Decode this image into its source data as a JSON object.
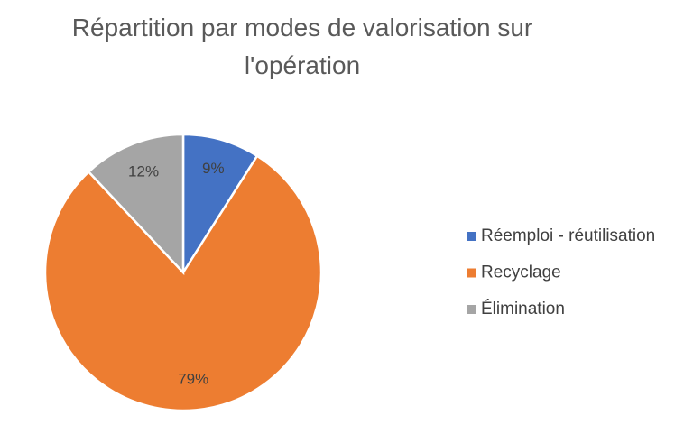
{
  "chart_data": {
    "type": "pie",
    "title": "Répartition par modes de valorisation sur l'opération",
    "categories": [
      "Réemploi - réutilisation",
      "Recyclage",
      "Élimination"
    ],
    "values": [
      9,
      79,
      12
    ],
    "value_labels": [
      "9%",
      "79%",
      "12%"
    ],
    "colors": [
      "#4472c4",
      "#ed7d31",
      "#a5a5a5"
    ],
    "legend": "right"
  }
}
